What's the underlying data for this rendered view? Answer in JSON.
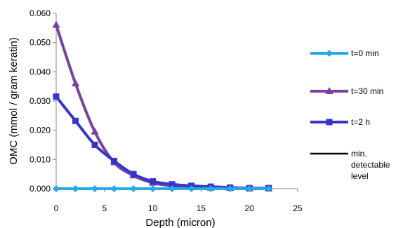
{
  "chart_data": {
    "type": "line",
    "title": "",
    "xlabel": "Depth (micron)",
    "ylabel": "OMC (mmol / gram keratin)",
    "xlim": [
      0,
      25
    ],
    "ylim": [
      0,
      0.06
    ],
    "x_ticks": [
      0,
      5,
      10,
      15,
      20,
      25
    ],
    "y_ticks": [
      "0.000",
      "0.010",
      "0.020",
      "0.030",
      "0.040",
      "0.050",
      "0.060"
    ],
    "grid": false,
    "legend": "right",
    "series": [
      {
        "name": "t=0 min",
        "color": "#29a8e6",
        "marker": "diamond",
        "x": [
          0,
          2,
          4,
          6,
          8,
          10,
          12,
          14,
          16,
          18,
          20,
          22
        ],
        "y": [
          0,
          0,
          0,
          0,
          0,
          0,
          0,
          0,
          0,
          0,
          0,
          0
        ]
      },
      {
        "name": "t=30 min",
        "color": "#7a3fa0",
        "marker": "triangle",
        "x": [
          0,
          2,
          4,
          6,
          8,
          10,
          12,
          14,
          16,
          18,
          20,
          22
        ],
        "y": [
          0.056,
          0.036,
          0.0195,
          0.009,
          0.0045,
          0.002,
          0.001,
          0.0005,
          0.0003,
          0.0002,
          0.0001,
          0.0001
        ]
      },
      {
        "name": "t=2 h",
        "color": "#3535cc",
        "marker": "square",
        "x": [
          0,
          2,
          4,
          6,
          8,
          10,
          12,
          14,
          16,
          18,
          20,
          22
        ],
        "y": [
          0.0315,
          0.0232,
          0.015,
          0.0095,
          0.005,
          0.0025,
          0.0015,
          0.001,
          0.0007,
          0.0004,
          0.0002,
          0.0002
        ]
      },
      {
        "name": "min. detectable level",
        "color": "#000000",
        "marker": "none",
        "x": [
          0,
          16
        ],
        "y": [
          0,
          0
        ]
      }
    ]
  }
}
